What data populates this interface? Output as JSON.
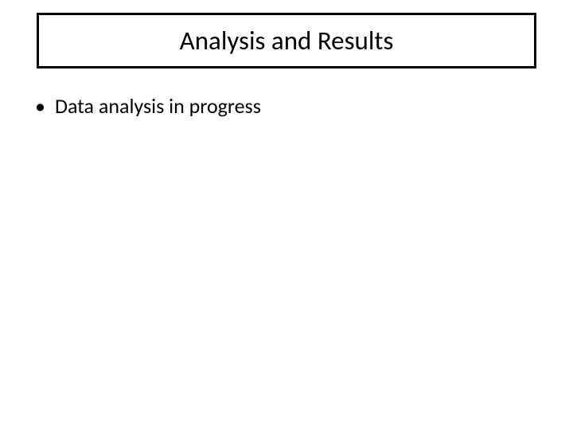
{
  "slide": {
    "title": "Analysis and Results",
    "title_box": {
      "border_color": "#000000",
      "border_width": 3,
      "background_color": "#ffffff",
      "font_size": 33,
      "font_color": "#000000"
    },
    "bullets": [
      {
        "marker": "•",
        "text": "Data analysis in progress"
      }
    ],
    "bullet_style": {
      "font_size": 26,
      "font_color": "#000000"
    },
    "background_color": "#ffffff"
  }
}
